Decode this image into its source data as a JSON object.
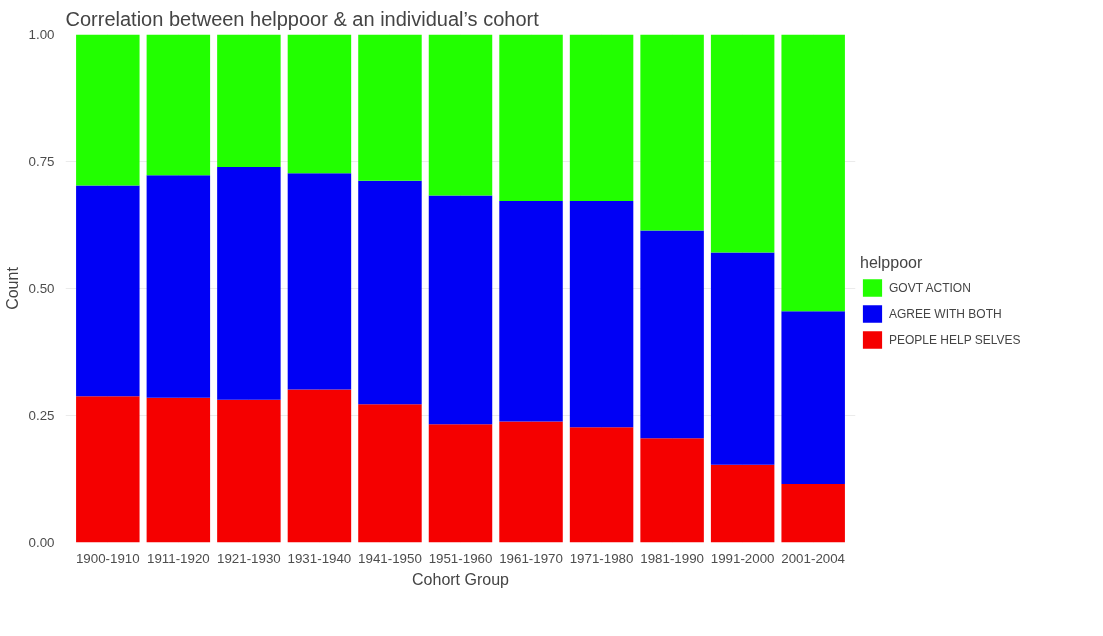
{
  "chart_data": {
    "type": "bar",
    "title": "Correlation between helppoor & an individual’s cohort",
    "xlabel": "Cohort Group",
    "ylabel": "Count",
    "legend_title": "helppoor",
    "stacked": true,
    "legend": "right",
    "grid": true,
    "categories": [
      "1900-1910",
      "1911-1920",
      "1921-1930",
      "1931-1940",
      "1941-1950",
      "1951-1960",
      "1961-1970",
      "1971-1980",
      "1981-1990",
      "1991-2000",
      "2001-2004"
    ],
    "ylim": [
      0,
      1
    ],
    "yticks": [
      {
        "value": 0,
        "label": "0.00"
      },
      {
        "value": 0.25,
        "label": "0.25"
      },
      {
        "value": 0.5,
        "label": "0.50"
      },
      {
        "value": 0.75,
        "label": "0.75"
      },
      {
        "value": 1,
        "label": "1.00"
      }
    ],
    "series": [
      {
        "name": "PEOPLE HELP SELVES",
        "color": "#f50000",
        "values": [
          0.288,
          0.285,
          0.281,
          0.301,
          0.272,
          0.233,
          0.238,
          0.227,
          0.205,
          0.153,
          0.115
        ]
      },
      {
        "name": "AGREE WITH BOTH",
        "color": "#0000f5",
        "values": [
          0.415,
          0.438,
          0.458,
          0.426,
          0.44,
          0.45,
          0.434,
          0.445,
          0.409,
          0.418,
          0.34
        ]
      },
      {
        "name": "GOVT ACTION",
        "color": "#22ff00",
        "values": [
          0.297,
          0.277,
          0.261,
          0.273,
          0.288,
          0.317,
          0.328,
          0.328,
          0.386,
          0.429,
          0.545
        ]
      }
    ]
  }
}
